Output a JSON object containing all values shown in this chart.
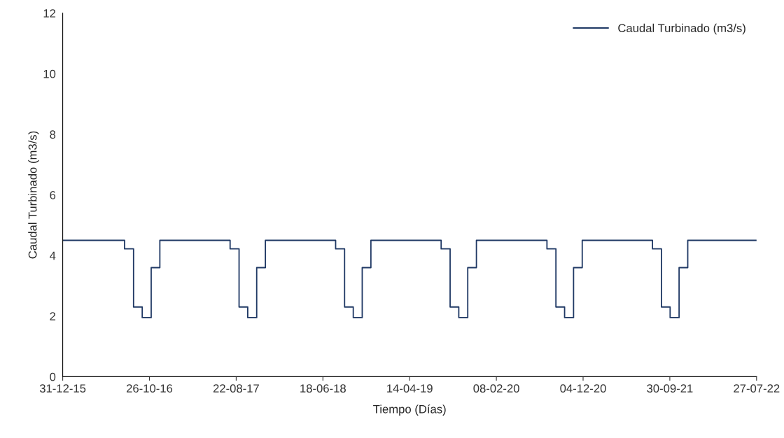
{
  "chart_data": {
    "type": "step",
    "xlabel": "Tiempo (Días)",
    "ylabel": "Caudal Turbinado (m3/s)",
    "x": [
      "2015-12-31",
      "2016-08-01",
      "2016-09-01",
      "2016-10-01",
      "2016-11-01",
      "2016-12-01",
      "2017-08-01",
      "2017-09-01",
      "2017-10-01",
      "2017-11-01",
      "2017-12-01",
      "2018-08-01",
      "2018-09-01",
      "2018-10-01",
      "2018-11-01",
      "2018-12-01",
      "2019-08-01",
      "2019-09-01",
      "2019-10-01",
      "2019-11-01",
      "2019-12-01",
      "2020-08-01",
      "2020-09-01",
      "2020-10-01",
      "2020-11-01",
      "2020-12-01",
      "2021-08-01",
      "2021-09-01",
      "2021-10-01",
      "2021-11-01",
      "2021-12-01",
      "2022-07-27"
    ],
    "series": [
      {
        "name": "Caudal Turbinado (m3/s)",
        "color": "#1f3864",
        "values": [
          4.5,
          4.22,
          2.3,
          1.95,
          3.6,
          4.5,
          4.22,
          2.3,
          1.95,
          3.6,
          4.5,
          4.22,
          2.3,
          1.95,
          3.6,
          4.5,
          4.22,
          2.3,
          1.95,
          3.6,
          4.5,
          4.22,
          2.3,
          1.95,
          3.6,
          4.5,
          4.22,
          2.3,
          1.95,
          3.6,
          4.5,
          4.5
        ]
      }
    ],
    "xlim": [
      "2015-12-31",
      "2022-07-27"
    ],
    "xticks": [
      {
        "value": "2015-12-31",
        "label": "31-12-15"
      },
      {
        "value": "2016-10-26",
        "label": "26-10-16"
      },
      {
        "value": "2017-08-22",
        "label": "22-08-17"
      },
      {
        "value": "2018-06-18",
        "label": "18-06-18"
      },
      {
        "value": "2019-04-14",
        "label": "14-04-19"
      },
      {
        "value": "2020-02-08",
        "label": "08-02-20"
      },
      {
        "value": "2020-12-04",
        "label": "04-12-20"
      },
      {
        "value": "2021-09-30",
        "label": "30-09-21"
      },
      {
        "value": "2022-07-27",
        "label": "27-07-22"
      }
    ],
    "ylim": [
      0,
      12
    ],
    "yticks": [
      0,
      2,
      4,
      6,
      8,
      10,
      12
    ],
    "grid": false,
    "legend": "top right",
    "line_style": "solid"
  }
}
